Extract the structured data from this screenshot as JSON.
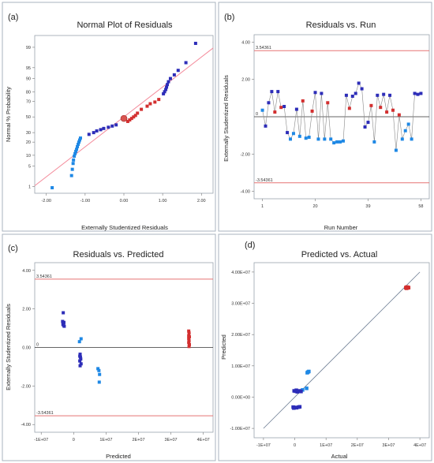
{
  "chart_data": [
    {
      "panel": "(a)",
      "type": "scatter",
      "title": "Normal Plot of Residuals",
      "xlabel": "Externally Studentized Residuals",
      "ylabel": "Normal % Probability",
      "x_ticks": [
        "-2.00",
        "-1.00",
        "0.00",
        "1.00",
        "2.00"
      ],
      "y_ticks": [
        "1",
        "5",
        "10",
        "20",
        "30",
        "50",
        "70",
        "80",
        "90",
        "95",
        "99"
      ],
      "xlim": [
        -2.3,
        2.3
      ],
      "ylim_probit": [
        -2.55,
        2.72
      ],
      "reference_line": {
        "slope": 1,
        "intercept": 0
      },
      "colors": {
        "low": "#1e88e5",
        "mid": "#2d2db8",
        "high": "#d32f2f",
        "line": "#f48a9a",
        "highlight": "#d9534f"
      },
      "highlight_point": {
        "x": 0.0,
        "p": 48
      },
      "points": [
        {
          "x": -1.85,
          "p": 0.9,
          "c": "low"
        },
        {
          "x": -1.35,
          "p": 2.5,
          "c": "low"
        },
        {
          "x": -1.33,
          "p": 4.0,
          "c": "low"
        },
        {
          "x": -1.31,
          "p": 6.0,
          "c": "low"
        },
        {
          "x": -1.3,
          "p": 7.5,
          "c": "low"
        },
        {
          "x": -1.28,
          "p": 9.5,
          "c": "low"
        },
        {
          "x": -1.26,
          "p": 11,
          "c": "low"
        },
        {
          "x": -1.24,
          "p": 12.5,
          "c": "low"
        },
        {
          "x": -1.22,
          "p": 14,
          "c": "low"
        },
        {
          "x": -1.2,
          "p": 16,
          "c": "low"
        },
        {
          "x": -1.18,
          "p": 18,
          "c": "low"
        },
        {
          "x": -1.16,
          "p": 20,
          "c": "low"
        },
        {
          "x": -1.14,
          "p": 22,
          "c": "low"
        },
        {
          "x": -1.12,
          "p": 24,
          "c": "low"
        },
        {
          "x": -0.9,
          "p": 28,
          "c": "mid"
        },
        {
          "x": -0.78,
          "p": 30,
          "c": "mid"
        },
        {
          "x": -0.7,
          "p": 32,
          "c": "mid"
        },
        {
          "x": -0.6,
          "p": 33.5,
          "c": "mid"
        },
        {
          "x": -0.52,
          "p": 35,
          "c": "mid"
        },
        {
          "x": -0.4,
          "p": 36.5,
          "c": "mid"
        },
        {
          "x": -0.3,
          "p": 38,
          "c": "mid"
        },
        {
          "x": -0.2,
          "p": 39.5,
          "c": "mid"
        },
        {
          "x": 0.1,
          "p": 44,
          "c": "high"
        },
        {
          "x": 0.15,
          "p": 46,
          "c": "high"
        },
        {
          "x": 0.2,
          "p": 48,
          "c": "high"
        },
        {
          "x": 0.25,
          "p": 50,
          "c": "high"
        },
        {
          "x": 0.3,
          "p": 52,
          "c": "high"
        },
        {
          "x": 0.35,
          "p": 55,
          "c": "high"
        },
        {
          "x": 0.45,
          "p": 60,
          "c": "high"
        },
        {
          "x": 0.6,
          "p": 64,
          "c": "high"
        },
        {
          "x": 0.68,
          "p": 67,
          "c": "high"
        },
        {
          "x": 0.8,
          "p": 69,
          "c": "high"
        },
        {
          "x": 0.9,
          "p": 72,
          "c": "high"
        },
        {
          "x": 1.02,
          "p": 78,
          "c": "mid"
        },
        {
          "x": 1.05,
          "p": 80,
          "c": "mid"
        },
        {
          "x": 1.08,
          "p": 82,
          "c": "mid"
        },
        {
          "x": 1.1,
          "p": 84,
          "c": "mid"
        },
        {
          "x": 1.12,
          "p": 86,
          "c": "mid"
        },
        {
          "x": 1.15,
          "p": 88,
          "c": "mid"
        },
        {
          "x": 1.2,
          "p": 90,
          "c": "mid"
        },
        {
          "x": 1.3,
          "p": 92,
          "c": "mid"
        },
        {
          "x": 1.4,
          "p": 94,
          "c": "mid"
        },
        {
          "x": 1.6,
          "p": 96.5,
          "c": "mid"
        },
        {
          "x": 1.85,
          "p": 99.3,
          "c": "mid"
        }
      ]
    },
    {
      "panel": "(b)",
      "type": "line",
      "title": "Residuals vs. Run",
      "xlabel": "Run Number",
      "ylabel": "Externally Studentized Residuals",
      "x_ticks": [
        "1",
        "20",
        "39",
        "58"
      ],
      "y_ticks": [
        "4.00",
        "2.00",
        "0",
        "-2.00",
        "-4.00"
      ],
      "xlim": [
        -2,
        61
      ],
      "ylim": [
        -4.4,
        4.4
      ],
      "limit_lines": [
        3.54361,
        -3.54361
      ],
      "limit_labels": [
        "3.54361",
        "-3.54361"
      ],
      "colors": {
        "low": "#1e88e5",
        "mid": "#2d2db8",
        "high": "#d32f2f",
        "line": "#888888",
        "limit": "#e57373"
      },
      "values": [
        0.35,
        -0.5,
        0.75,
        1.35,
        0.25,
        1.35,
        0.5,
        0.55,
        -0.85,
        -1.2,
        -0.9,
        0.4,
        -1.05,
        0.85,
        -1.15,
        -1.1,
        0.3,
        1.3,
        -1.2,
        1.25,
        -1.2,
        0.75,
        -1.2,
        -1.4,
        -1.35,
        -1.35,
        -1.3,
        1.15,
        0.45,
        1.1,
        1.25,
        1.8,
        1.5,
        -0.55,
        -0.3,
        0.6,
        -1.35,
        1.15,
        0.5,
        1.2,
        0.25,
        1.15,
        0.35,
        -1.8,
        0.1,
        -1.2,
        -0.75,
        -0.4,
        -1.2,
        1.25,
        1.2,
        1.25
      ],
      "colors_seq": [
        "low",
        "mid",
        "mid",
        "mid",
        "high",
        "mid",
        "high",
        "mid",
        "mid",
        "low",
        "low",
        "mid",
        "low",
        "high",
        "low",
        "low",
        "high",
        "mid",
        "low",
        "mid",
        "low",
        "high",
        "low",
        "low",
        "low",
        "low",
        "low",
        "mid",
        "high",
        "mid",
        "mid",
        "mid",
        "mid",
        "mid",
        "mid",
        "high",
        "low",
        "mid",
        "high",
        "mid",
        "high",
        "mid",
        "high",
        "low",
        "high",
        "low",
        "low",
        "low",
        "low",
        "mid",
        "mid",
        "mid"
      ]
    },
    {
      "panel": "(c)",
      "type": "scatter",
      "title": "Residuals vs. Predicted",
      "xlabel": "Predicted",
      "ylabel": "Externally Studentized Residuals",
      "x_ticks": [
        "-1E+07",
        "0",
        "1E+07",
        "2E+07",
        "3E+07",
        "4E+07"
      ],
      "y_ticks": [
        "4.00",
        "2.00",
        "0.00",
        "-2.00",
        "-4.00"
      ],
      "xlim": [
        -12000000.0,
        43000000.0
      ],
      "ylim": [
        -4.4,
        4.4
      ],
      "limit_lines": [
        3.54361,
        -3.54361
      ],
      "limit_labels": [
        "3.54361",
        "-3.54361"
      ],
      "colors": {
        "low": "#1e88e5",
        "mid": "#2d2db8",
        "high": "#d32f2f",
        "limit": "#e57373"
      },
      "points": [
        {
          "x": -3200000.0,
          "y": 1.8,
          "c": "mid"
        },
        {
          "x": -3400000.0,
          "y": 1.35,
          "c": "mid"
        },
        {
          "x": -3000000.0,
          "y": 1.3,
          "c": "mid"
        },
        {
          "x": -3300000.0,
          "y": 1.2,
          "c": "mid"
        },
        {
          "x": -2900000.0,
          "y": 1.1,
          "c": "mid"
        },
        {
          "x": -3100000.0,
          "y": 1.15,
          "c": "mid"
        },
        {
          "x": -3200000.0,
          "y": 1.25,
          "c": "mid"
        },
        {
          "x": 1800000.0,
          "y": 0.3,
          "c": "low"
        },
        {
          "x": 2300000.0,
          "y": 0.45,
          "c": "low"
        },
        {
          "x": 2000000.0,
          "y": -0.35,
          "c": "mid"
        },
        {
          "x": 2100000.0,
          "y": -0.5,
          "c": "mid"
        },
        {
          "x": 2200000.0,
          "y": -0.6,
          "c": "mid"
        },
        {
          "x": 1900000.0,
          "y": -0.7,
          "c": "mid"
        },
        {
          "x": 2300000.0,
          "y": -0.85,
          "c": "mid"
        },
        {
          "x": 2000000.0,
          "y": -0.95,
          "c": "mid"
        },
        {
          "x": 1900000.0,
          "y": -0.45,
          "c": "mid"
        },
        {
          "x": 7500000.0,
          "y": -1.1,
          "c": "low"
        },
        {
          "x": 7800000.0,
          "y": -1.2,
          "c": "low"
        },
        {
          "x": 8000000.0,
          "y": -1.4,
          "c": "low"
        },
        {
          "x": 7900000.0,
          "y": -1.8,
          "c": "low"
        },
        {
          "x": 35500000.0,
          "y": 0.85,
          "c": "high"
        },
        {
          "x": 35600000.0,
          "y": 0.75,
          "c": "high"
        },
        {
          "x": 35500000.0,
          "y": 0.6,
          "c": "high"
        },
        {
          "x": 35700000.0,
          "y": 0.55,
          "c": "high"
        },
        {
          "x": 35500000.0,
          "y": 0.45,
          "c": "high"
        },
        {
          "x": 35600000.0,
          "y": 0.35,
          "c": "high"
        },
        {
          "x": 35500000.0,
          "y": 0.25,
          "c": "high"
        },
        {
          "x": 35700000.0,
          "y": 0.15,
          "c": "high"
        },
        {
          "x": 35600000.0,
          "y": 0.05,
          "c": "high"
        }
      ]
    },
    {
      "panel": "(d)",
      "type": "scatter",
      "title": "Predicted vs. Actual",
      "xlabel": "Actual",
      "ylabel": "Predicted",
      "x_ticks": [
        "-1E+07",
        "0",
        "1E+07",
        "2E+07",
        "3E+07",
        "4E+07"
      ],
      "y_ticks": [
        "4.00E+07",
        "3.00E+07",
        "2.00E+07",
        "1.00E+07",
        "0.00E+00",
        "-1.00E+07"
      ],
      "xlim": [
        -13000000.0,
        43000000.0
      ],
      "ylim": [
        -13000000.0,
        43000000.0
      ],
      "reference_line": {
        "slope": 1,
        "intercept": 0
      },
      "colors": {
        "low": "#1e88e5",
        "mid": "#2d2db8",
        "high": "#d32f2f",
        "line": "#6f7f95"
      },
      "points": [
        {
          "x": 4000000.0,
          "y": 7800000.0,
          "c": "low"
        },
        {
          "x": 4500000.0,
          "y": 8200000.0,
          "c": "low"
        },
        {
          "x": 4200000.0,
          "y": 8000000.0,
          "c": "low"
        },
        {
          "x": 2500000.0,
          "y": 2300000.0,
          "c": "low"
        },
        {
          "x": 3800000.0,
          "y": 2800000.0,
          "c": "low"
        },
        {
          "x": 2000000.0,
          "y": 1800000.0,
          "c": "mid"
        },
        {
          "x": 1500000.0,
          "y": 2000000.0,
          "c": "mid"
        },
        {
          "x": 500000.0,
          "y": 2200000.0,
          "c": "mid"
        },
        {
          "x": 200000.0,
          "y": 1900000.0,
          "c": "mid"
        },
        {
          "x": -200000.0,
          "y": 2000000.0,
          "c": "mid"
        },
        {
          "x": 800000.0,
          "y": 1700000.0,
          "c": "mid"
        },
        {
          "x": -500000.0,
          "y": -3200000.0,
          "c": "mid"
        },
        {
          "x": 0.0,
          "y": -3300000.0,
          "c": "mid"
        },
        {
          "x": 600000.0,
          "y": -3400000.0,
          "c": "mid"
        },
        {
          "x": 1200000.0,
          "y": -3200000.0,
          "c": "mid"
        },
        {
          "x": 1600000.0,
          "y": -3100000.0,
          "c": "mid"
        },
        {
          "x": -300000.0,
          "y": -3500000.0,
          "c": "mid"
        },
        {
          "x": 35500000.0,
          "y": 35000000.0,
          "c": "high"
        },
        {
          "x": 35800000.0,
          "y": 35200000.0,
          "c": "high"
        },
        {
          "x": 36000000.0,
          "y": 34900000.0,
          "c": "high"
        },
        {
          "x": 36200000.0,
          "y": 35100000.0,
          "c": "high"
        },
        {
          "x": 36400000.0,
          "y": 35000000.0,
          "c": "high"
        },
        {
          "x": 35700000.0,
          "y": 34800000.0,
          "c": "high"
        }
      ]
    }
  ]
}
